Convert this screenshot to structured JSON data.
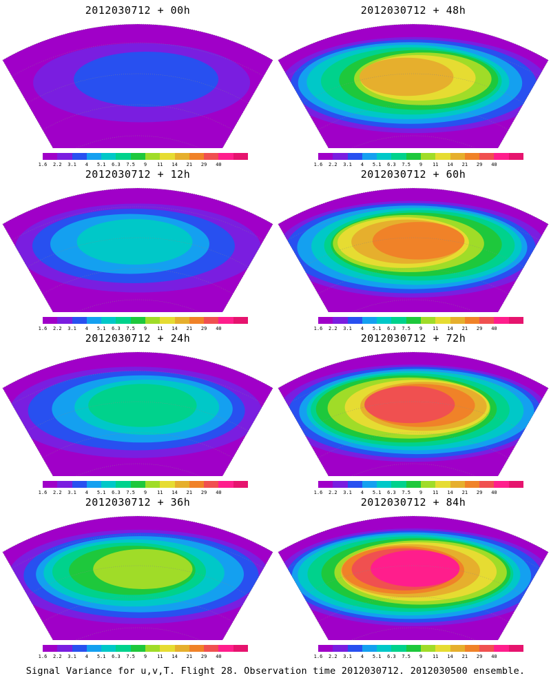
{
  "panels": [
    {
      "title": "2012030712 + 00h",
      "intensity": 0.15
    },
    {
      "title": "2012030712 + 48h",
      "intensity": 0.7
    },
    {
      "title": "2012030712 + 12h",
      "intensity": 0.3
    },
    {
      "title": "2012030712 + 60h",
      "intensity": 0.8
    },
    {
      "title": "2012030712 + 24h",
      "intensity": 0.4
    },
    {
      "title": "2012030712 + 72h",
      "intensity": 0.85
    },
    {
      "title": "2012030712 + 36h",
      "intensity": 0.55
    },
    {
      "title": "2012030712 + 84h",
      "intensity": 0.9
    }
  ],
  "colorbar": {
    "labels": [
      "1.6",
      "2.2",
      "3.1",
      "4",
      "5.1",
      "6.3",
      "7.5",
      "9",
      "11",
      "14",
      "21",
      "29",
      "40"
    ],
    "colors": [
      "#a000c8",
      "#7a1ee0",
      "#2850f0",
      "#14a0f0",
      "#00c8c8",
      "#00d28c",
      "#1ec83c",
      "#a0dc28",
      "#e6dc32",
      "#e6af2d",
      "#f08228",
      "#f05050",
      "#ff1e8c",
      "#e6146e"
    ]
  },
  "footer": "Signal Variance for u,v,T. Flight 28. Observation time 2012030712. 2012030500 ensemble."
}
